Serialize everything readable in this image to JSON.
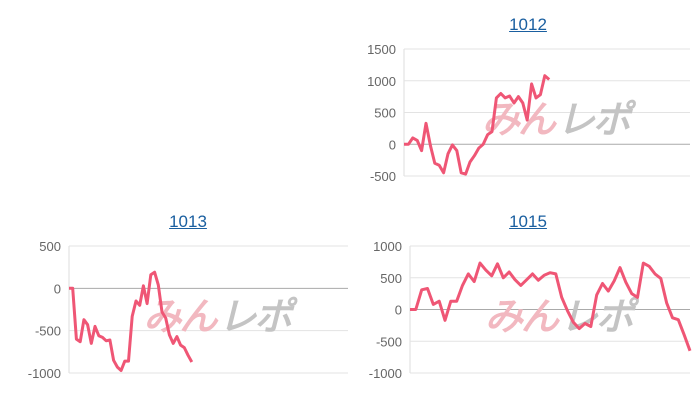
{
  "line_color": "#ef5675",
  "watermark": {
    "text_pink": "みん",
    "text_gray": "レポ",
    "pink": "#f2b8c0",
    "gray": "#c4c4c4"
  },
  "chart_data": [
    {
      "type": "line",
      "title": "1012",
      "yticks": [
        1500,
        1000,
        500,
        0,
        -500
      ],
      "ylim": [
        -500,
        1500
      ],
      "xlim": [
        0,
        65
      ],
      "grid": true,
      "values": [
        0,
        0,
        100,
        60,
        -100,
        330,
        -20,
        -300,
        -330,
        -450,
        -150,
        -10,
        -100,
        -450,
        -470,
        -280,
        -180,
        -60,
        0,
        150,
        200,
        730,
        800,
        730,
        760,
        650,
        750,
        650,
        380,
        950,
        730,
        780,
        1080,
        1020
      ]
    },
    {
      "type": "line",
      "title": "1013",
      "yticks": [
        500,
        0,
        -500,
        -1000
      ],
      "ylim": [
        -1000,
        500
      ],
      "xlim": [
        0,
        75
      ],
      "grid": true,
      "values": [
        0,
        0,
        -600,
        -630,
        -370,
        -430,
        -650,
        -450,
        -560,
        -580,
        -620,
        -610,
        -850,
        -930,
        -970,
        -860,
        -860,
        -330,
        -150,
        -200,
        30,
        -180,
        160,
        190,
        40,
        -280,
        -350,
        -550,
        -650,
        -570,
        -670,
        -700,
        -790,
        -870
      ]
    },
    {
      "type": "line",
      "title": "1015",
      "yticks": [
        1000,
        500,
        0,
        -500,
        -1000
      ],
      "ylim": [
        -1000,
        1000
      ],
      "xlim": [
        0,
        48
      ],
      "grid": true,
      "values": [
        0,
        0,
        310,
        330,
        80,
        130,
        -170,
        130,
        130,
        380,
        560,
        440,
        730,
        620,
        530,
        720,
        500,
        590,
        470,
        380,
        470,
        560,
        460,
        540,
        580,
        560,
        190,
        -20,
        -200,
        -300,
        -220,
        -270,
        230,
        410,
        290,
        450,
        660,
        430,
        250,
        190,
        730,
        680,
        560,
        490,
        100,
        -130,
        -160,
        -400,
        -650
      ]
    }
  ]
}
